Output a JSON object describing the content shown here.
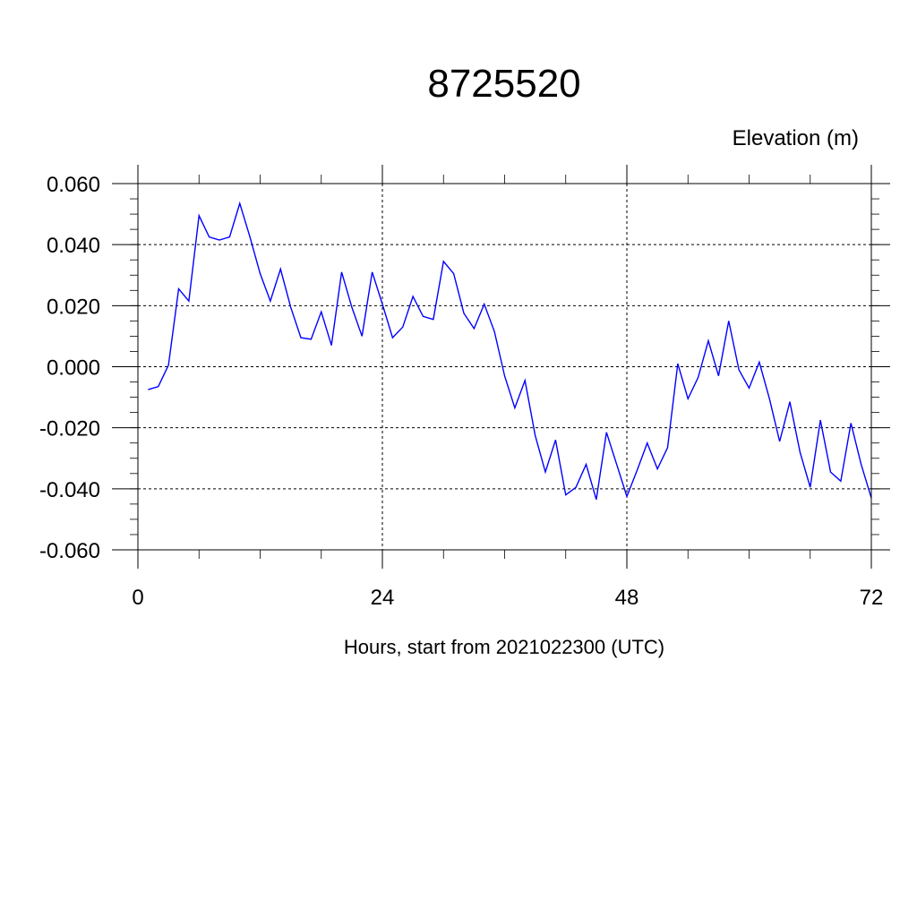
{
  "chart_data": {
    "type": "line",
    "title": "8725520",
    "ylabel": "Elevation (m)",
    "xlabel": "Hours, start from 2021022300 (UTC)",
    "xlim": [
      0,
      72
    ],
    "ylim": [
      -0.06,
      0.06
    ],
    "x_ticks": [
      0,
      24,
      48,
      72
    ],
    "x_tick_labels": [
      "0",
      "24",
      "48",
      "72"
    ],
    "y_ticks": [
      -0.06,
      -0.04,
      -0.02,
      0.0,
      0.02,
      0.04,
      0.06
    ],
    "y_tick_labels": [
      "-0.060",
      "-0.040",
      "-0.020",
      "0.000",
      "0.020",
      "0.040",
      "0.060"
    ],
    "grid": true,
    "series": [
      {
        "color": "#0000ff",
        "x": [
          1,
          2,
          3,
          4,
          5,
          6,
          7,
          8,
          9,
          10,
          11,
          12,
          13,
          14,
          15,
          16,
          17,
          18,
          19,
          20,
          21,
          22,
          23,
          24,
          25,
          26,
          27,
          28,
          29,
          30,
          31,
          32,
          33,
          34,
          35,
          36,
          37,
          38,
          39,
          40,
          41,
          42,
          43,
          44,
          45,
          46,
          47,
          48,
          49,
          50,
          51,
          52,
          53,
          54,
          55,
          56,
          57,
          58,
          59,
          60,
          61,
          62,
          63,
          64,
          65,
          66,
          67,
          68,
          69,
          70,
          71,
          72
        ],
        "values": [
          -0.0075,
          -0.0065,
          0.0005,
          0.0255,
          0.0215,
          0.0495,
          0.0425,
          0.0415,
          0.0425,
          0.0535,
          0.0425,
          0.0305,
          0.0215,
          0.032,
          0.0195,
          0.0095,
          0.009,
          0.018,
          0.007,
          0.031,
          0.0195,
          0.01,
          0.031,
          0.0205,
          0.0095,
          0.013,
          0.023,
          0.0165,
          0.0155,
          0.0345,
          0.0305,
          0.0175,
          0.0125,
          0.0205,
          0.0115,
          -0.003,
          -0.0135,
          -0.0045,
          -0.0225,
          -0.0345,
          -0.024,
          -0.042,
          -0.0395,
          -0.032,
          -0.0435,
          -0.0215,
          -0.032,
          -0.0425,
          -0.034,
          -0.025,
          -0.0335,
          -0.0265,
          0.001,
          -0.0105,
          -0.0035,
          0.0085,
          -0.003,
          0.015,
          -0.001,
          -0.007,
          0.0015,
          -0.0105,
          -0.0245,
          -0.0115,
          -0.028,
          -0.0395,
          -0.0175,
          -0.0345,
          -0.0375,
          -0.0185,
          -0.032,
          -0.043
        ]
      }
    ]
  }
}
